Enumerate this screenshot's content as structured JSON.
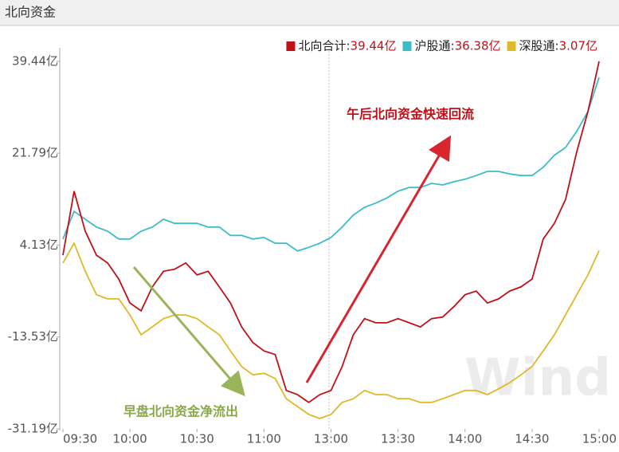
{
  "chart_data": {
    "type": "line",
    "panel_title": "北向资金",
    "legend_separator": ":",
    "x": [
      0,
      5,
      10,
      15,
      20,
      25,
      30,
      35,
      40,
      45,
      50,
      55,
      60,
      65,
      70,
      75,
      80,
      85,
      90,
      95,
      100,
      105,
      110,
      115,
      120,
      125,
      130,
      135,
      140,
      145,
      150,
      155,
      160,
      165,
      170,
      175,
      180,
      185,
      190,
      195,
      200,
      205,
      210,
      215,
      220,
      225,
      230,
      235,
      240
    ],
    "xlim": [
      0,
      240
    ],
    "xticks": [
      {
        "value": 0,
        "label": "09:30"
      },
      {
        "value": 30,
        "label": "10:00"
      },
      {
        "value": 60,
        "label": "10:30"
      },
      {
        "value": 90,
        "label": "11:00"
      },
      {
        "value": 120,
        "label": "13:00"
      },
      {
        "value": 150,
        "label": "13:30"
      },
      {
        "value": 180,
        "label": "14:00"
      },
      {
        "value": 210,
        "label": "14:30"
      },
      {
        "value": 240,
        "label": "15:00"
      }
    ],
    "ylim": [
      -31.19,
      39.44
    ],
    "yticks": [
      {
        "value": 39.44,
        "label": "39.44亿"
      },
      {
        "value": 21.79,
        "label": "21.79亿"
      },
      {
        "value": 4.13,
        "label": "4.13亿"
      },
      {
        "value": -13.53,
        "label": "-13.53亿"
      },
      {
        "value": -31.19,
        "label": "-31.19亿"
      }
    ],
    "series": [
      {
        "name": "北向合计",
        "color": "#c0101a",
        "value_label": "39.44亿",
        "values": [
          2.2,
          14.5,
          6.8,
          2.2,
          0.7,
          -2.4,
          -7.0,
          -8.5,
          -3.9,
          -0.9,
          -0.5,
          0.7,
          -1.6,
          -0.9,
          -3.9,
          -7.0,
          -11.6,
          -14.6,
          -16.2,
          -16.9,
          -23.8,
          -24.6,
          -26.1,
          -24.6,
          -23.8,
          -19.2,
          -13.1,
          -10.0,
          -10.8,
          -10.8,
          -10.0,
          -10.8,
          -11.6,
          -10.0,
          -9.7,
          -7.7,
          -5.4,
          -4.7,
          -7.0,
          -6.2,
          -4.7,
          -3.9,
          -2.4,
          5.3,
          8.3,
          12.9,
          22.1,
          29.8,
          39.44
        ]
      },
      {
        "name": "沪股通",
        "color": "#3cbcc8",
        "value_label": "36.38亿",
        "values": [
          5.3,
          10.6,
          9.1,
          7.6,
          6.8,
          5.3,
          5.3,
          6.8,
          7.6,
          9.1,
          8.3,
          8.3,
          8.3,
          7.6,
          7.6,
          6.0,
          6.0,
          5.3,
          5.6,
          4.5,
          4.5,
          3.0,
          3.7,
          4.5,
          5.6,
          7.6,
          9.9,
          11.4,
          12.2,
          13.2,
          14.5,
          15.2,
          15.2,
          16.0,
          15.7,
          16.3,
          16.8,
          17.5,
          18.3,
          18.3,
          17.8,
          17.5,
          17.5,
          19.1,
          21.4,
          22.9,
          26.0,
          29.8,
          36.38
        ]
      },
      {
        "name": "深股通",
        "color": "#e0b828",
        "value_label": "3.07亿",
        "values": [
          0.7,
          4.5,
          -0.9,
          -5.4,
          -6.2,
          -6.2,
          -9.3,
          -13.1,
          -11.6,
          -10.0,
          -9.3,
          -9.3,
          -10.0,
          -11.6,
          -13.1,
          -16.2,
          -19.2,
          -20.8,
          -20.5,
          -21.5,
          -25.4,
          -26.9,
          -28.4,
          -29.2,
          -28.4,
          -26.1,
          -25.4,
          -23.8,
          -24.6,
          -24.6,
          -25.4,
          -25.4,
          -26.1,
          -26.1,
          -25.4,
          -24.6,
          -23.8,
          -23.8,
          -24.6,
          -23.5,
          -22.3,
          -20.8,
          -19.2,
          -16.2,
          -13.1,
          -9.3,
          -5.4,
          -1.6,
          3.07
        ]
      }
    ],
    "annotations": [
      {
        "text": "午后北向资金快速回流",
        "color": "#c0101a"
      },
      {
        "text": "早盘北向资金净流出",
        "color": "#8aa84a"
      }
    ],
    "watermark": "Wind"
  }
}
